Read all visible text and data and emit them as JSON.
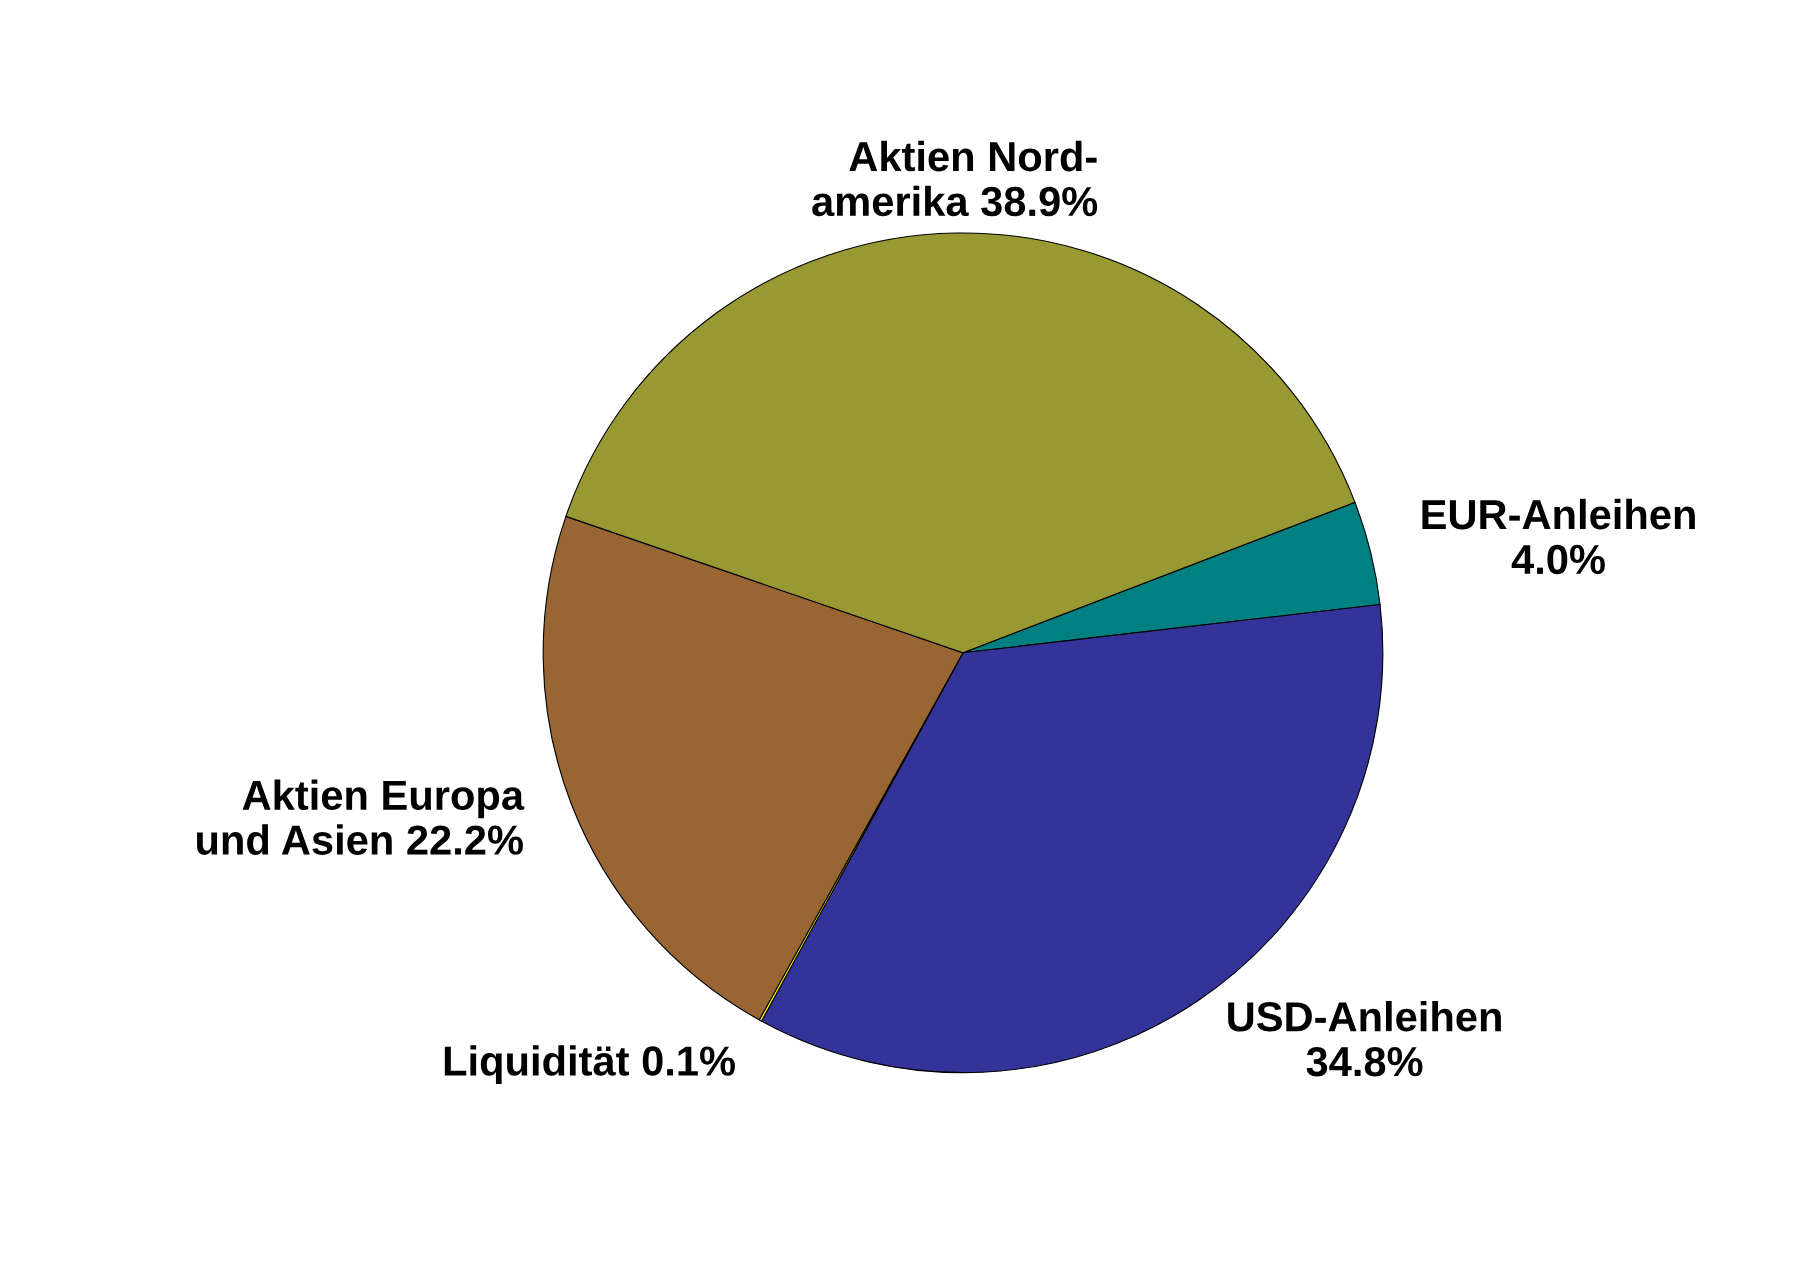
{
  "chart_data": {
    "type": "pie",
    "categories": [
      "EUR-Anleihen",
      "USD-Anleihen",
      "Liquidität",
      "Aktien Europa\nund Asien",
      "Aktien Nord-\namerika"
    ],
    "values": [
      4.0,
      34.8,
      0.1,
      22.2,
      38.9
    ],
    "value_labels": [
      "4.0%",
      "34.8%",
      "0.1%",
      "22.2%",
      "38.9%"
    ],
    "colors": [
      "#008080",
      "#333399",
      "#ffff00",
      "#996633",
      "#999933"
    ],
    "legend": false
  }
}
